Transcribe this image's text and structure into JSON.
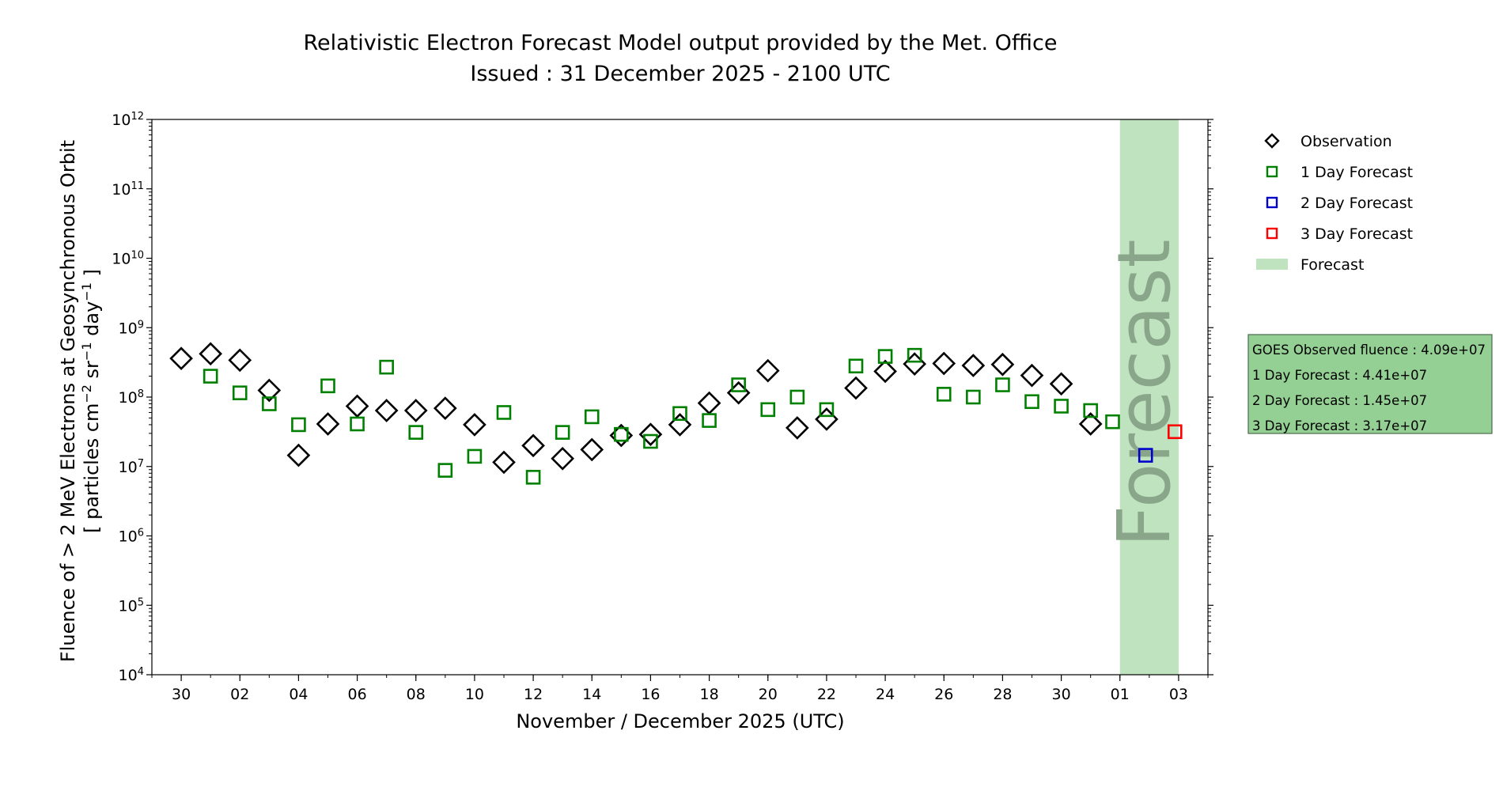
{
  "chart_data": {
    "type": "scatter",
    "title": "Relativistic Electron Forecast Model output provided by the Met. Office",
    "subtitle": "Issued : 31 December 2025 - 2100 UTC",
    "xlabel": "November / December 2025 (UTC)",
    "ylabel_line1": "Fluence of > 2 MeV Electrons at Geosynchronous Orbit",
    "ylabel_line2_prefix": "[ particles cm",
    "ylabel_sup1": "−2",
    "ylabel_mid": " sr",
    "ylabel_sup2": "−1",
    "ylabel_mid2": " day",
    "ylabel_sup3": "−1",
    "ylabel_suffix": " ]",
    "y_scale": "log",
    "ylim_exp": [
      4,
      12
    ],
    "y_tick_base": "10",
    "y_tick_exps": [
      "4",
      "5",
      "6",
      "7",
      "8",
      "9",
      "10",
      "11",
      "12"
    ],
    "xlim": [
      "2025-11-29",
      "2026-01-04"
    ],
    "x_ticks": [
      {
        "date": "2025-11-30",
        "label": "30"
      },
      {
        "date": "2025-12-02",
        "label": "02"
      },
      {
        "date": "2025-12-04",
        "label": "04"
      },
      {
        "date": "2025-12-06",
        "label": "06"
      },
      {
        "date": "2025-12-08",
        "label": "08"
      },
      {
        "date": "2025-12-10",
        "label": "10"
      },
      {
        "date": "2025-12-12",
        "label": "12"
      },
      {
        "date": "2025-12-14",
        "label": "14"
      },
      {
        "date": "2025-12-16",
        "label": "16"
      },
      {
        "date": "2025-12-18",
        "label": "18"
      },
      {
        "date": "2025-12-20",
        "label": "20"
      },
      {
        "date": "2025-12-22",
        "label": "22"
      },
      {
        "date": "2025-12-24",
        "label": "24"
      },
      {
        "date": "2025-12-26",
        "label": "26"
      },
      {
        "date": "2025-12-28",
        "label": "28"
      },
      {
        "date": "2025-12-30",
        "label": "30"
      },
      {
        "date": "2026-01-01",
        "label": "01"
      },
      {
        "date": "2026-01-03",
        "label": "03"
      }
    ],
    "forecast_band": {
      "start": "2026-01-01T00:00",
      "end": "2026-01-03T00:00",
      "label": "Forecast",
      "color": "#bfe3bf"
    },
    "series": [
      {
        "name": "Observation",
        "marker": "diamond",
        "color": "#000000",
        "points": [
          {
            "x": "2025-11-30T00:00",
            "y": 360000000.0
          },
          {
            "x": "2025-12-01T00:00",
            "y": 420000000.0
          },
          {
            "x": "2025-12-02T00:00",
            "y": 340000000.0
          },
          {
            "x": "2025-12-03T00:00",
            "y": 125000000.0
          },
          {
            "x": "2025-12-04T00:00",
            "y": 14500000.0
          },
          {
            "x": "2025-12-05T00:00",
            "y": 41000000.0
          },
          {
            "x": "2025-12-06T00:00",
            "y": 74000000.0
          },
          {
            "x": "2025-12-07T00:00",
            "y": 64000000.0
          },
          {
            "x": "2025-12-08T00:00",
            "y": 64000000.0
          },
          {
            "x": "2025-12-09T00:00",
            "y": 69000000.0
          },
          {
            "x": "2025-12-10T00:00",
            "y": 40000000.0
          },
          {
            "x": "2025-12-11T00:00",
            "y": 11500000.0
          },
          {
            "x": "2025-12-12T00:00",
            "y": 20000000.0
          },
          {
            "x": "2025-12-13T00:00",
            "y": 13000000.0
          },
          {
            "x": "2025-12-14T00:00",
            "y": 17500000.0
          },
          {
            "x": "2025-12-15T00:00",
            "y": 28000000.0
          },
          {
            "x": "2025-12-16T00:00",
            "y": 29000000.0
          },
          {
            "x": "2025-12-17T00:00",
            "y": 40000000.0
          },
          {
            "x": "2025-12-18T00:00",
            "y": 82000000.0
          },
          {
            "x": "2025-12-19T00:00",
            "y": 115000000.0
          },
          {
            "x": "2025-12-20T00:00",
            "y": 240000000.0
          },
          {
            "x": "2025-12-21T00:00",
            "y": 36000000.0
          },
          {
            "x": "2025-12-22T00:00",
            "y": 48000000.0
          },
          {
            "x": "2025-12-23T00:00",
            "y": 135000000.0
          },
          {
            "x": "2025-12-24T00:00",
            "y": 235000000.0
          },
          {
            "x": "2025-12-25T00:00",
            "y": 300000000.0
          },
          {
            "x": "2025-12-26T00:00",
            "y": 305000000.0
          },
          {
            "x": "2025-12-27T00:00",
            "y": 285000000.0
          },
          {
            "x": "2025-12-28T00:00",
            "y": 295000000.0
          },
          {
            "x": "2025-12-29T00:00",
            "y": 205000000.0
          },
          {
            "x": "2025-12-30T00:00",
            "y": 155000000.0
          },
          {
            "x": "2025-12-31T00:00",
            "y": 41000000.0
          }
        ]
      },
      {
        "name": "1 Day Forecast",
        "marker": "square",
        "color": "#008000",
        "points": [
          {
            "x": "2025-12-01T00:00",
            "y": 200000000.0
          },
          {
            "x": "2025-12-02T00:00",
            "y": 115000000.0
          },
          {
            "x": "2025-12-03T00:00",
            "y": 80000000.0
          },
          {
            "x": "2025-12-04T00:00",
            "y": 40000000.0
          },
          {
            "x": "2025-12-05T00:00",
            "y": 145000000.0
          },
          {
            "x": "2025-12-06T00:00",
            "y": 41000000.0
          },
          {
            "x": "2025-12-07T00:00",
            "y": 270000000.0
          },
          {
            "x": "2025-12-08T00:00",
            "y": 31000000.0
          },
          {
            "x": "2025-12-09T00:00",
            "y": 8800000.0
          },
          {
            "x": "2025-12-10T00:00",
            "y": 14000000.0
          },
          {
            "x": "2025-12-11T00:00",
            "y": 60000000.0
          },
          {
            "x": "2025-12-12T00:00",
            "y": 7000000.0
          },
          {
            "x": "2025-12-13T00:00",
            "y": 31000000.0
          },
          {
            "x": "2025-12-14T00:00",
            "y": 52000000.0
          },
          {
            "x": "2025-12-15T00:00",
            "y": 29000000.0
          },
          {
            "x": "2025-12-16T00:00",
            "y": 23000000.0
          },
          {
            "x": "2025-12-17T00:00",
            "y": 58000000.0
          },
          {
            "x": "2025-12-18T00:00",
            "y": 46000000.0
          },
          {
            "x": "2025-12-19T00:00",
            "y": 150000000.0
          },
          {
            "x": "2025-12-20T00:00",
            "y": 66000000.0
          },
          {
            "x": "2025-12-21T00:00",
            "y": 100000000.0
          },
          {
            "x": "2025-12-22T00:00",
            "y": 66000000.0
          },
          {
            "x": "2025-12-23T00:00",
            "y": 280000000.0
          },
          {
            "x": "2025-12-24T00:00",
            "y": 385000000.0
          },
          {
            "x": "2025-12-25T00:00",
            "y": 400000000.0
          },
          {
            "x": "2025-12-26T00:00",
            "y": 110000000.0
          },
          {
            "x": "2025-12-27T00:00",
            "y": 100000000.0
          },
          {
            "x": "2025-12-28T00:00",
            "y": 150000000.0
          },
          {
            "x": "2025-12-29T00:00",
            "y": 86000000.0
          },
          {
            "x": "2025-12-30T00:00",
            "y": 74000000.0
          },
          {
            "x": "2025-12-31T00:00",
            "y": 64000000.0
          },
          {
            "x": "2025-12-31T18:00",
            "y": 44100000.0
          }
        ]
      },
      {
        "name": "2 Day Forecast",
        "marker": "square",
        "color": "#0000cc",
        "points": [
          {
            "x": "2026-01-01T21:00",
            "y": 14500000.0
          }
        ]
      },
      {
        "name": "3 Day Forecast",
        "marker": "square",
        "color": "#ff0000",
        "points": [
          {
            "x": "2026-01-02T21:00",
            "y": 31700000.0
          }
        ]
      }
    ],
    "legend": {
      "placement": "right of plot, top",
      "entries": [
        {
          "label": "Observation",
          "marker": "diamond",
          "color": "#000000"
        },
        {
          "label": "1 Day Forecast",
          "marker": "square",
          "color": "#008000"
        },
        {
          "label": "2 Day Forecast",
          "marker": "square",
          "color": "#0000cc"
        },
        {
          "label": "3 Day Forecast",
          "marker": "square",
          "color": "#ff0000"
        },
        {
          "label": "Forecast",
          "marker": "patch",
          "color": "#bfe3bf"
        }
      ]
    },
    "info_box": {
      "background": "#94d094",
      "lines": [
        "GOES Observed fluence : 4.09e+07",
        "1 Day Forecast : 4.41e+07",
        "2 Day Forecast : 1.45e+07",
        "3 Day Forecast : 3.17e+07"
      ]
    }
  }
}
